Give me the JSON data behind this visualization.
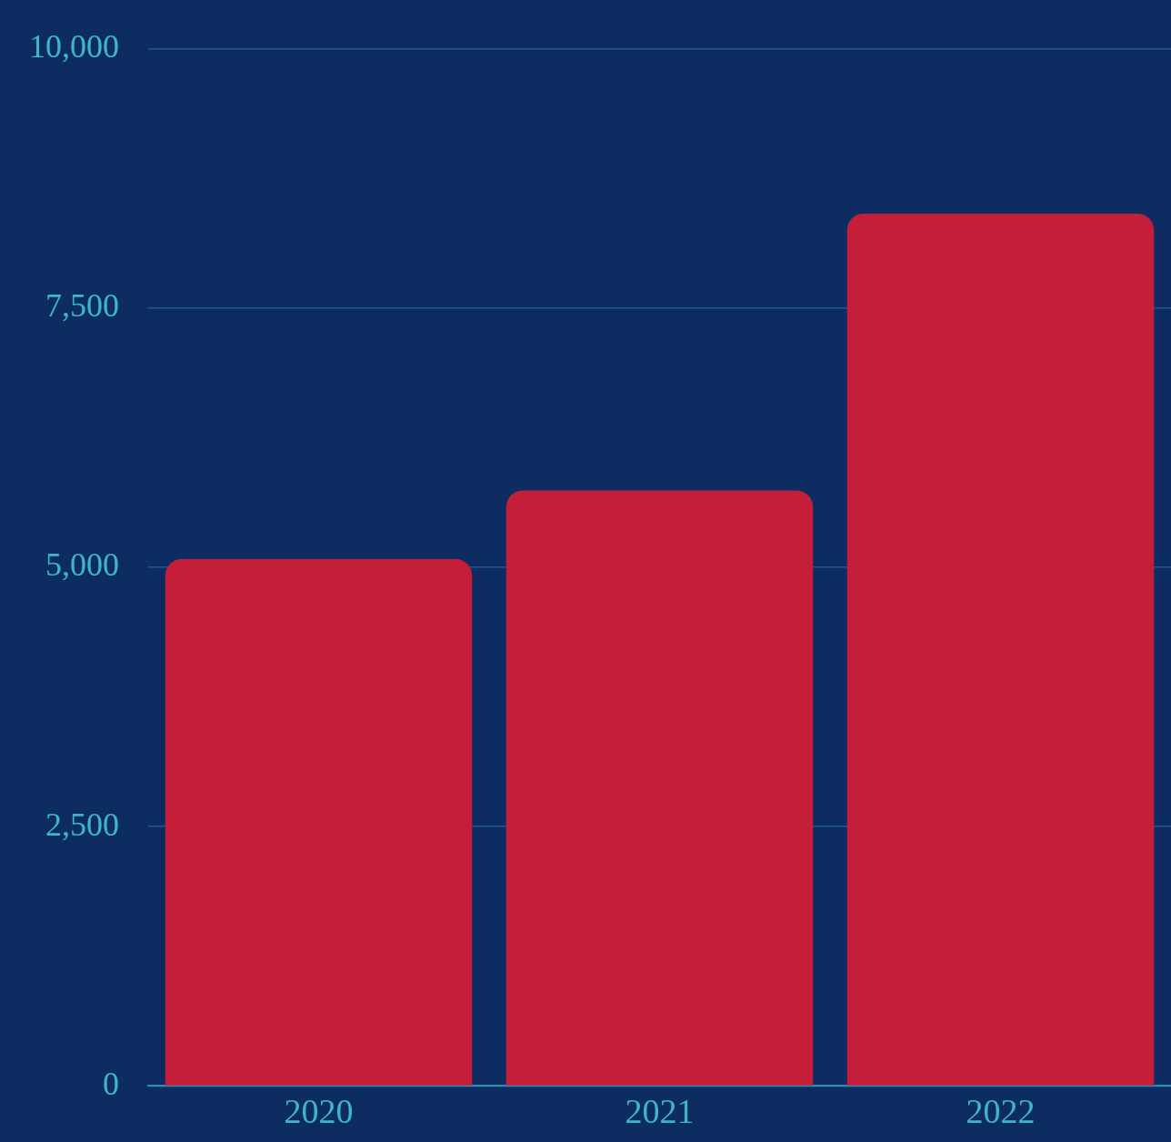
{
  "chart_data": {
    "type": "bar",
    "categories": [
      "2020",
      "2021",
      "2022"
    ],
    "values": [
      5080,
      5740,
      8410
    ],
    "color": "#c41e3a",
    "ylim": [
      0,
      10000
    ],
    "yticks": [
      0,
      {
        "value": 2500,
        "label": "2,500"
      },
      {
        "value": 5000,
        "label": "5,000"
      },
      {
        "value": 7500,
        "label": "7,500"
      },
      {
        "value": 10000,
        "label": "10,000"
      }
    ],
    "grid": "y",
    "legend": false
  }
}
